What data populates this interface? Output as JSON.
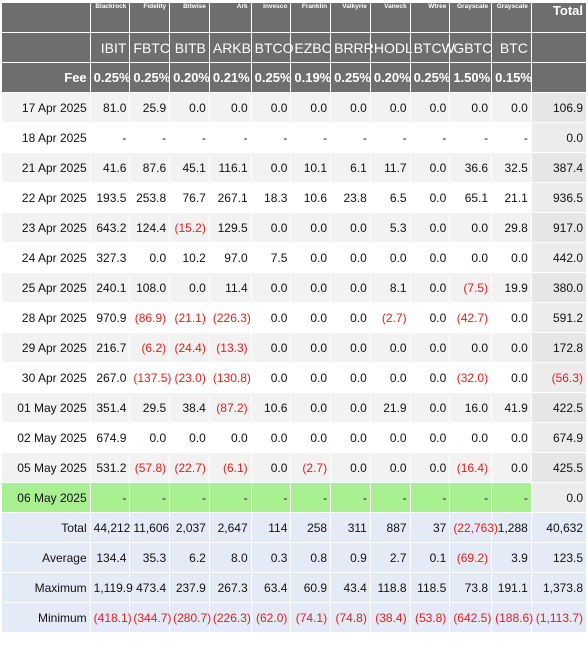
{
  "chart_data": {
    "type": "table",
    "title": "",
    "issuers": [
      "Blackrock",
      "Fidelity",
      "Bitwise",
      "Ark",
      "Invesco",
      "Franklin",
      "Valkyrie",
      "Vaneck",
      "Wtree",
      "Grayscale",
      "Grayscale"
    ],
    "tickers": [
      "IBIT",
      "FBTC",
      "BITB",
      "ARKB",
      "BTCO",
      "EZBC",
      "BRRR",
      "HODL",
      "BTCW",
      "GBTC",
      "BTC"
    ],
    "total_label": "Total",
    "fee_label": "Fee",
    "fees": [
      "0.25%",
      "0.25%",
      "0.20%",
      "0.21%",
      "0.25%",
      "0.19%",
      "0.25%",
      "0.20%",
      "0.25%",
      "1.50%",
      "0.15%"
    ],
    "rows": [
      {
        "date": "17 Apr 2025",
        "values": [
          "81.0",
          "25.9",
          "0.0",
          "0.0",
          "0.0",
          "0.0",
          "0.0",
          "0.0",
          "0.0",
          "0.0",
          "0.0"
        ],
        "total": "106.9"
      },
      {
        "date": "18 Apr 2025",
        "values": [
          "-",
          "-",
          "-",
          "-",
          "-",
          "-",
          "-",
          "-",
          "-",
          "-",
          "-"
        ],
        "total": "0.0"
      },
      {
        "date": "21 Apr 2025",
        "values": [
          "41.6",
          "87.6",
          "45.1",
          "116.1",
          "0.0",
          "10.1",
          "6.1",
          "11.7",
          "0.0",
          "36.6",
          "32.5"
        ],
        "total": "387.4"
      },
      {
        "date": "22 Apr 2025",
        "values": [
          "193.5",
          "253.8",
          "76.7",
          "267.1",
          "18.3",
          "10.6",
          "23.8",
          "6.5",
          "0.0",
          "65.1",
          "21.1"
        ],
        "total": "936.5"
      },
      {
        "date": "23 Apr 2025",
        "values": [
          "643.2",
          "124.4",
          "(15.2)",
          "129.5",
          "0.0",
          "0.0",
          "0.0",
          "5.3",
          "0.0",
          "0.0",
          "29.8"
        ],
        "total": "917.0"
      },
      {
        "date": "24 Apr 2025",
        "values": [
          "327.3",
          "0.0",
          "10.2",
          "97.0",
          "7.5",
          "0.0",
          "0.0",
          "0.0",
          "0.0",
          "0.0",
          "0.0"
        ],
        "total": "442.0"
      },
      {
        "date": "25 Apr 2025",
        "values": [
          "240.1",
          "108.0",
          "0.0",
          "11.4",
          "0.0",
          "0.0",
          "0.0",
          "8.1",
          "0.0",
          "(7.5)",
          "19.9"
        ],
        "total": "380.0"
      },
      {
        "date": "28 Apr 2025",
        "values": [
          "970.9",
          "(86.9)",
          "(21.1)",
          "(226.3)",
          "0.0",
          "0.0",
          "0.0",
          "(2.7)",
          "0.0",
          "(42.7)",
          "0.0"
        ],
        "total": "591.2"
      },
      {
        "date": "29 Apr 2025",
        "values": [
          "216.7",
          "(6.2)",
          "(24.4)",
          "(13.3)",
          "0.0",
          "0.0",
          "0.0",
          "0.0",
          "0.0",
          "0.0",
          "0.0"
        ],
        "total": "172.8"
      },
      {
        "date": "30 Apr 2025",
        "values": [
          "267.0",
          "(137.5)",
          "(23.0)",
          "(130.8)",
          "0.0",
          "0.0",
          "0.0",
          "0.0",
          "0.0",
          "(32.0)",
          "0.0"
        ],
        "total": "(56.3)"
      },
      {
        "date": "01 May 2025",
        "values": [
          "351.4",
          "29.5",
          "38.4",
          "(87.2)",
          "10.6",
          "0.0",
          "0.0",
          "21.9",
          "0.0",
          "16.0",
          "41.9"
        ],
        "total": "422.5"
      },
      {
        "date": "02 May 2025",
        "values": [
          "674.9",
          "0.0",
          "0.0",
          "0.0",
          "0.0",
          "0.0",
          "0.0",
          "0.0",
          "0.0",
          "0.0",
          "0.0"
        ],
        "total": "674.9"
      },
      {
        "date": "05 May 2025",
        "values": [
          "531.2",
          "(57.8)",
          "(22.7)",
          "(6.1)",
          "0.0",
          "(2.7)",
          "0.0",
          "0.0",
          "0.0",
          "(16.4)",
          "0.0"
        ],
        "total": "425.5"
      },
      {
        "date": "06 May 2025",
        "values": [
          "-",
          "-",
          "-",
          "-",
          "-",
          "-",
          "-",
          "-",
          "-",
          "-",
          "-"
        ],
        "total": "0.0",
        "highlight": true
      }
    ],
    "summary": [
      {
        "label": "Total",
        "values": [
          "44,212",
          "11,606",
          "2,037",
          "2,647",
          "114",
          "258",
          "311",
          "887",
          "37",
          "(22,763)",
          "1,288"
        ],
        "total": "40,632"
      },
      {
        "label": "Average",
        "values": [
          "134.4",
          "35.3",
          "6.2",
          "8.0",
          "0.3",
          "0.8",
          "0.9",
          "2.7",
          "0.1",
          "(69.2)",
          "3.9"
        ],
        "total": "123.5"
      },
      {
        "label": "Maximum",
        "values": [
          "1,119.9",
          "473.4",
          "237.9",
          "267.3",
          "63.4",
          "60.9",
          "43.4",
          "118.8",
          "118.5",
          "73.8",
          "191.1"
        ],
        "total": "1,373.8"
      },
      {
        "label": "Minimum",
        "values": [
          "(418.1)",
          "(344.7)",
          "(280.7)",
          "(226.3)",
          "(62.0)",
          "(74.1)",
          "(74.8)",
          "(38.4)",
          "(53.8)",
          "(642.5)",
          "(188.6)"
        ],
        "total": "(1,113.7)"
      }
    ]
  },
  "colors": {
    "header_bg": "#6e6e6e",
    "row_bg": "#f2f2f2",
    "row_alt_bg": "#ffffff",
    "highlight_bg": "#a8f08f",
    "summary_bg": "#e4eaf6",
    "negative": "#e02020"
  }
}
